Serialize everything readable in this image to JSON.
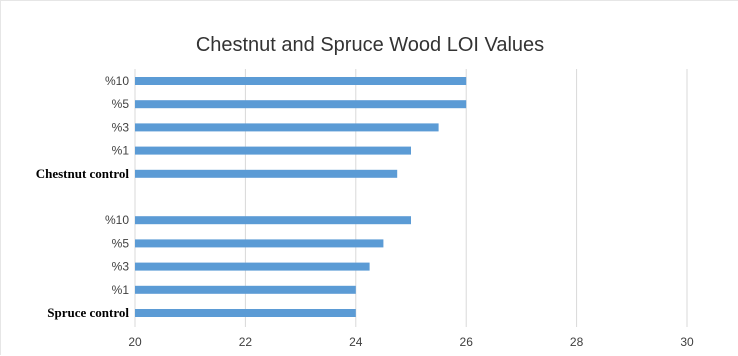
{
  "chart_data": {
    "type": "bar",
    "orientation": "horizontal",
    "title": "Chestnut and Spruce Wood LOI Values",
    "xlabel": "",
    "ylabel": "",
    "xlim": [
      20,
      30
    ],
    "x_ticks": [
      "20",
      "22",
      "24",
      "26",
      "28",
      "30"
    ],
    "grid": true,
    "legend": "none",
    "bar_color": "#5b9bd5",
    "categories": [
      "%10",
      "%5",
      "%3",
      "%1",
      "Chestnut control",
      "",
      "%10",
      "%5",
      "%3",
      "%1",
      "Spruce control"
    ],
    "bold_categories": [
      "Chestnut control",
      "Spruce control"
    ],
    "values": [
      26,
      26,
      25.5,
      25,
      24.75,
      null,
      25,
      24.5,
      24.25,
      24,
      24
    ]
  }
}
